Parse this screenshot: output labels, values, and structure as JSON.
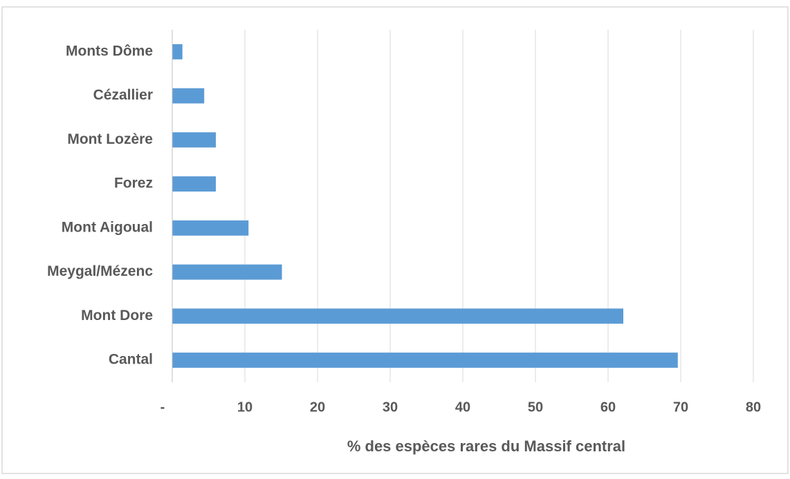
{
  "chart_data": {
    "type": "bar",
    "orientation": "horizontal",
    "categories": [
      "Monts Dôme",
      "Cézallier",
      "Mont Lozère",
      "Forez",
      "Mont Aigoual",
      "Meygal/Mézenc",
      "Mont Dore",
      "Cantal"
    ],
    "values": [
      1.4,
      4.4,
      6.0,
      6.0,
      10.5,
      15.1,
      62.1,
      69.6
    ],
    "color": "#5b9bd5",
    "xlabel": "% des espèces rares du Massif central",
    "xlim": [
      0,
      80
    ],
    "xticks": [
      {
        "value": 0,
        "label": "-"
      },
      10,
      20,
      30,
      40,
      50,
      60,
      70,
      80
    ],
    "grid": true
  }
}
